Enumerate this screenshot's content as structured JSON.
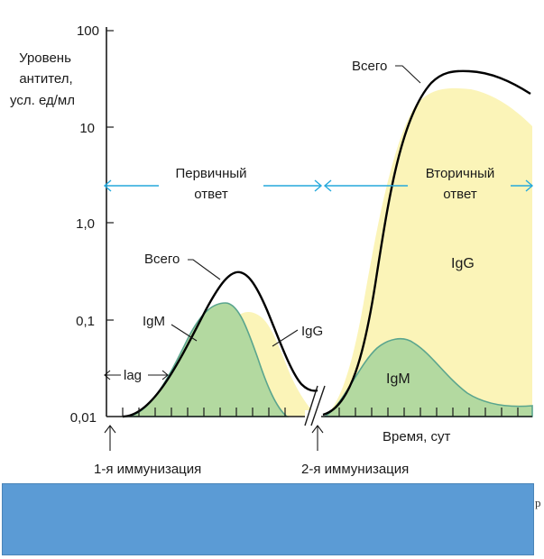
{
  "y_axis": {
    "title_lines": [
      "Уровень",
      "антител,",
      "усл. ед/мл"
    ],
    "tick_labels": [
      "100",
      "10",
      "1,0",
      "0,1",
      "0,01"
    ]
  },
  "x_axis": {
    "label": "Время, сут"
  },
  "primary_response": {
    "label_lines": [
      "Первичный",
      "ответ"
    ]
  },
  "secondary_response": {
    "label_lines": [
      "Вторичный",
      "ответ"
    ]
  },
  "curve_labels": {
    "total_primary": "Всего",
    "total_secondary": "Всего",
    "igm_primary": "IgM",
    "igg_primary": "IgG",
    "igg_secondary": "IgG",
    "igm_secondary": "IgM",
    "lag": "lag"
  },
  "events": {
    "immunization_1": "1-я иммунизация",
    "immunization_2": "2-я иммунизация"
  },
  "colors": {
    "igm_fill": "#b3d9a0",
    "igm_stroke": "#5aa58e",
    "igg_fill": "#fbf4b8",
    "total_stroke": "#000000",
    "arrow_cyan": "#25a9dc",
    "banner": "#5b9bd5"
  },
  "banner": {
    "edge_text": "р"
  }
}
